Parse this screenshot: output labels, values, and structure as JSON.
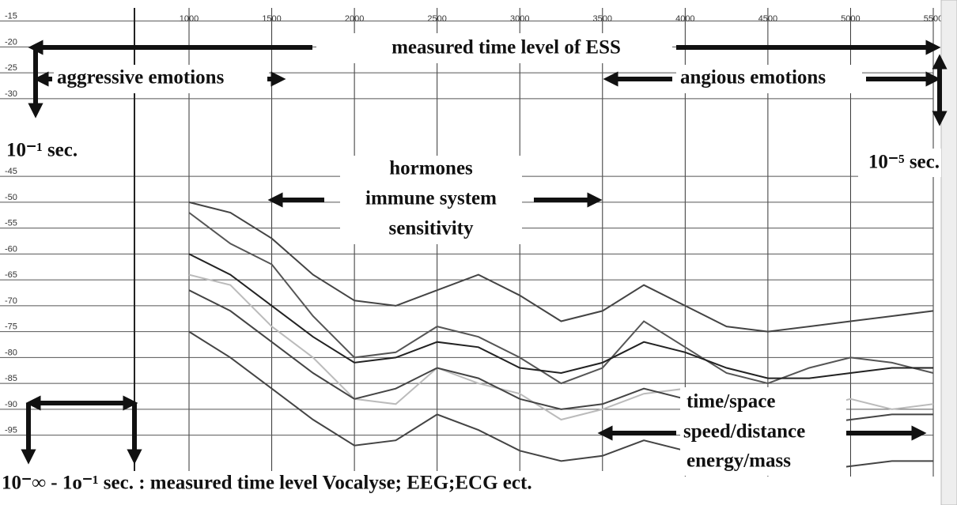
{
  "chart_data": {
    "type": "line",
    "x": [
      1000,
      1250,
      1500,
      1750,
      2000,
      2250,
      2500,
      2750,
      3000,
      3250,
      3500,
      3750,
      4000,
      4250,
      4500,
      4750,
      5000,
      5250,
      5500
    ],
    "series": [
      {
        "color": "#444444",
        "values": [
          -50,
          -52,
          -57,
          -64,
          -69,
          -70,
          -67,
          -64,
          -68,
          -73,
          -71,
          -66,
          -70,
          -74,
          -75,
          -74,
          -73,
          -72,
          -71
        ]
      },
      {
        "color": "#555555",
        "values": [
          -52,
          -58,
          -62,
          -72,
          -80,
          -79,
          -74,
          -76,
          -80,
          -85,
          -82,
          -73,
          -78,
          -83,
          -85,
          -82,
          -80,
          -81,
          -83
        ]
      },
      {
        "color": "#222222",
        "values": [
          -60,
          -64,
          -70,
          -76,
          -81,
          -80,
          -77,
          -78,
          -82,
          -83,
          -81,
          -77,
          -79,
          -82,
          -84,
          -84,
          -83,
          -82,
          -82
        ]
      },
      {
        "color": "#bbbbbb",
        "values": [
          -64,
          -66,
          -74,
          -80,
          -88,
          -89,
          -82,
          -85,
          -87,
          -92,
          -90,
          -87,
          -86,
          -90,
          -92,
          -90,
          -88,
          -90,
          -89
        ]
      },
      {
        "color": "#444444",
        "values": [
          -67,
          -71,
          -77,
          -83,
          -88,
          -86,
          -82,
          -84,
          -88,
          -90,
          -89,
          -86,
          -88,
          -91,
          -93,
          -93,
          -92,
          -91,
          -91
        ]
      },
      {
        "color": "#444444",
        "values": [
          -75,
          -80,
          -86,
          -92,
          -97,
          -96,
          -91,
          -94,
          -98,
          -100,
          -99,
          -96,
          -98,
          -101,
          -102,
          -102,
          -101,
          -100,
          -100
        ]
      }
    ],
    "xlim": [
      670,
      5500
    ],
    "xticks": [
      1000,
      1500,
      2000,
      2500,
      3000,
      3500,
      4000,
      4500,
      5000,
      5500
    ],
    "ylim": [
      -103,
      -12
    ],
    "yticks": [
      -15,
      -20,
      -25,
      -30,
      -45,
      -50,
      -55,
      -60,
      -65,
      -70,
      -75,
      -80,
      -85,
      -90,
      -95
    ],
    "grid": true,
    "annotations": [
      "measured time level of ESS",
      "aggressive emotions",
      "angious emotions",
      "10⁻¹ sec.",
      "10⁻⁵ sec.",
      "hormones",
      "immune system",
      "sensitivity",
      "time/space",
      "speed/distance",
      "energy/mass",
      "10⁻∞ - 1o⁻¹ sec. : measured time level Vocalyse; EEG;ECG ect."
    ]
  }
}
